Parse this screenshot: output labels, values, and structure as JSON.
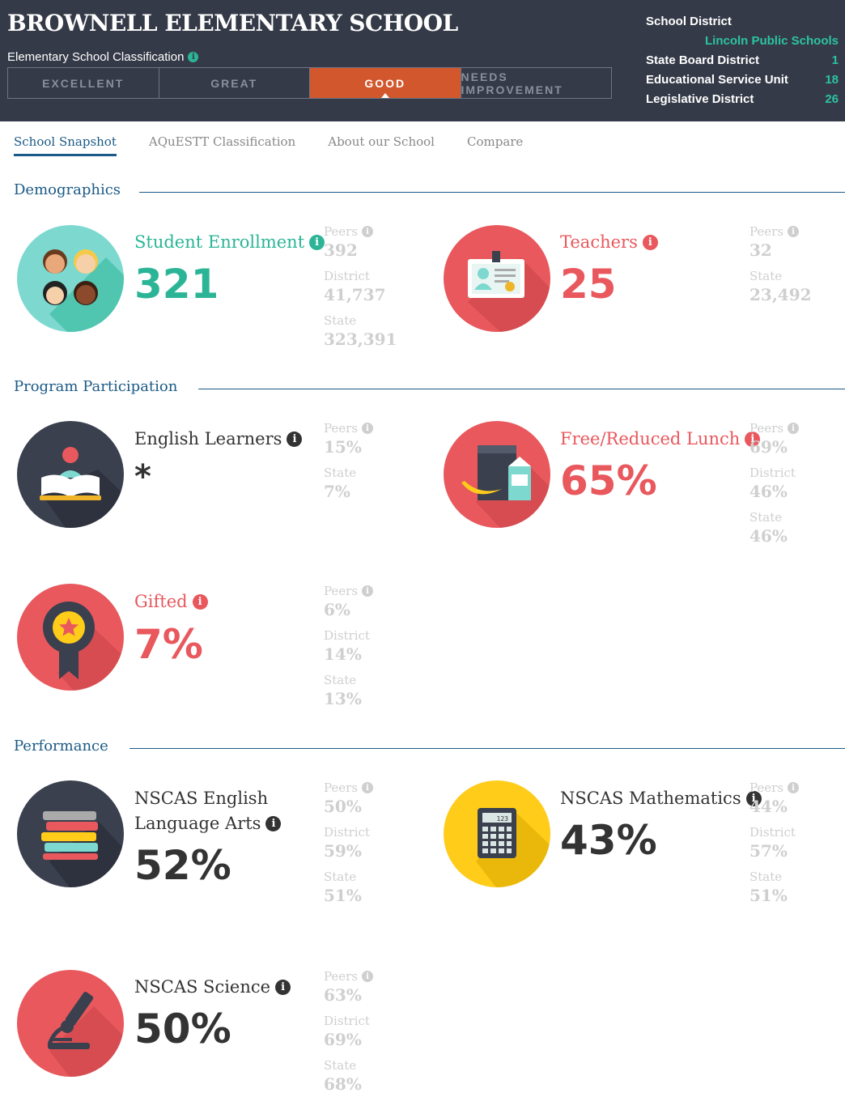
{
  "header": {
    "school_name": "BROWNELL ELEMENTARY SCHOOL",
    "classification_label": "Elementary School Classification",
    "classification_levels": [
      "EXCELLENT",
      "GREAT",
      "GOOD",
      "NEEDS IMPROVEMENT"
    ],
    "current_classification": "GOOD",
    "school_district_label": "School District",
    "school_district_value": "Lincoln Public Schools",
    "state_board_label": "State Board District",
    "state_board_value": "1",
    "esu_label": "Educational Service Unit",
    "esu_value": "18",
    "legislative_label": "Legislative District",
    "legislative_value": "26"
  },
  "tabs": [
    "School Snapshot",
    "AQuESTT Classification",
    "About our School",
    "Compare"
  ],
  "active_tab": "School Snapshot",
  "sections": {
    "demographics": "Demographics",
    "program": "Program Participation",
    "performance": "Performance"
  },
  "labels": {
    "peers": "Peers",
    "district": "District",
    "state": "State"
  },
  "metrics": {
    "enrollment": {
      "title": "Student Enrollment",
      "value": "321",
      "peers": "392",
      "district": "41,737",
      "state": "323,391"
    },
    "teachers": {
      "title": "Teachers",
      "value": "25",
      "peers": "32",
      "state": "23,492"
    },
    "english_learners": {
      "title": "English Learners",
      "value": "*",
      "peers": "15%",
      "state": "7%"
    },
    "lunch": {
      "title": "Free/Reduced Lunch",
      "value": "65%",
      "peers": "69%",
      "district": "46%",
      "state": "46%"
    },
    "gifted": {
      "title": "Gifted",
      "value": "7%",
      "peers": "6%",
      "district": "14%",
      "state": "13%"
    },
    "ela": {
      "title_line1": "NSCAS English",
      "title_line2": "Language Arts",
      "value": "52%",
      "peers": "50%",
      "district": "59%",
      "state": "51%"
    },
    "math": {
      "title": "NSCAS Mathematics",
      "value": "43%",
      "peers": "44%",
      "district": "57%",
      "state": "51%"
    },
    "science": {
      "title": "NSCAS Science",
      "value": "50%",
      "peers": "63%",
      "district": "69%",
      "state": "68%"
    }
  },
  "calculator_display": "123",
  "colors": {
    "header_bg": "#353a48",
    "accent_green": "#2bb596",
    "accent_red": "#e8585d",
    "active_orange": "#d2572c",
    "link_blue": "#1a5a86"
  }
}
